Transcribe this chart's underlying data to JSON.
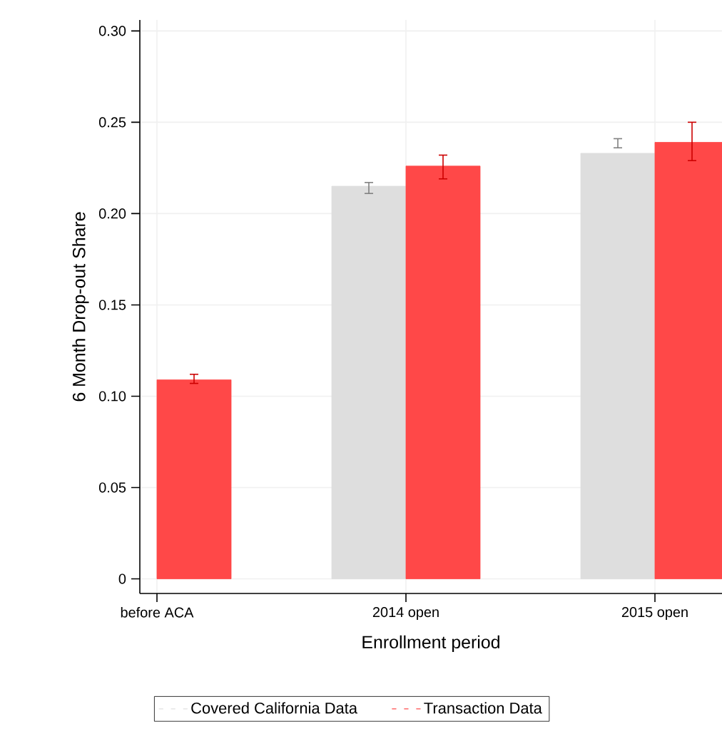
{
  "chart_data": {
    "type": "bar",
    "xlabel": "Enrollment period",
    "ylabel": "6 Month Drop-out Share",
    "categories": [
      "before ACA",
      "2014 open",
      "2015 open"
    ],
    "series": [
      {
        "name": "Covered California Data",
        "color": "#dedede",
        "values": [
          null,
          0.215,
          0.233
        ],
        "errors": [
          null,
          [
            0.211,
            0.217
          ],
          [
            0.236,
            0.241
          ]
        ]
      },
      {
        "name": "Transaction Data",
        "color": "#ff4848",
        "values": [
          0.109,
          0.226,
          0.239
        ],
        "errors": [
          [
            0.107,
            0.112
          ],
          [
            0.219,
            0.232
          ],
          [
            0.229,
            0.25
          ]
        ]
      }
    ],
    "ylim": [
      -0.008,
      0.306
    ],
    "yticks": [
      {
        "value": 0,
        "label": "0"
      },
      0.05,
      {
        "value": 0.1,
        "label": "0.10"
      },
      0.15,
      {
        "value": 0.2,
        "label": "0.20"
      },
      0.25,
      {
        "value": 0.3,
        "label": "0.30"
      }
    ],
    "grid": true,
    "legend": "bottom"
  }
}
